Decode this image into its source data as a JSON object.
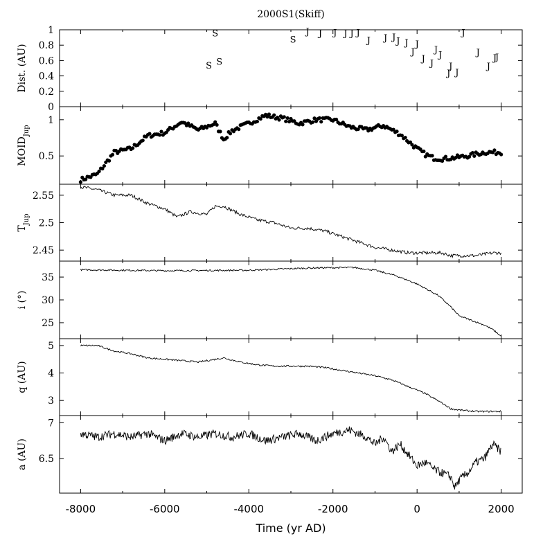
{
  "figure": {
    "title": "2000S1(Skiff)",
    "xlabel": "Time (yr AD)",
    "xlim": [
      -8500,
      2500
    ],
    "xticks": [
      -8000,
      -6000,
      -4000,
      -2000,
      0,
      2000
    ]
  },
  "chart_data": [
    {
      "type": "scatter",
      "ylabel": "Dist. (AU)",
      "ylim": [
        0,
        1
      ],
      "yticks": [
        "0",
        "0.2",
        "0.4",
        "0.6",
        "0.8",
        "1"
      ],
      "points": [
        {
          "x": -4800,
          "y": 0.96,
          "label": "S"
        },
        {
          "x": -4950,
          "y": 0.54,
          "label": "S"
        },
        {
          "x": -4700,
          "y": 0.59,
          "label": "S"
        },
        {
          "x": -2950,
          "y": 0.88,
          "label": "S"
        },
        {
          "x": -2600,
          "y": 0.98,
          "label": "J"
        },
        {
          "x": -2300,
          "y": 0.96,
          "label": "J"
        },
        {
          "x": -1950,
          "y": 0.97,
          "label": "J"
        },
        {
          "x": -1700,
          "y": 0.96,
          "label": "J"
        },
        {
          "x": -1550,
          "y": 0.96,
          "label": "J"
        },
        {
          "x": -1400,
          "y": 0.97,
          "label": "J"
        },
        {
          "x": -1150,
          "y": 0.87,
          "label": "J"
        },
        {
          "x": -750,
          "y": 0.9,
          "label": "J"
        },
        {
          "x": -550,
          "y": 0.91,
          "label": "J"
        },
        {
          "x": -450,
          "y": 0.86,
          "label": "J"
        },
        {
          "x": -250,
          "y": 0.84,
          "label": "J"
        },
        {
          "x": -100,
          "y": 0.72,
          "label": "J"
        },
        {
          "x": 0,
          "y": 0.82,
          "label": "J"
        },
        {
          "x": 150,
          "y": 0.63,
          "label": "J"
        },
        {
          "x": 350,
          "y": 0.57,
          "label": "J"
        },
        {
          "x": 450,
          "y": 0.75,
          "label": "J"
        },
        {
          "x": 550,
          "y": 0.68,
          "label": "J"
        },
        {
          "x": 750,
          "y": 0.44,
          "label": "J"
        },
        {
          "x": 800,
          "y": 0.53,
          "label": "J"
        },
        {
          "x": 950,
          "y": 0.45,
          "label": "J"
        },
        {
          "x": 1100,
          "y": 0.97,
          "label": "J"
        },
        {
          "x": 1450,
          "y": 0.71,
          "label": "J"
        },
        {
          "x": 1700,
          "y": 0.53,
          "label": "J"
        },
        {
          "x": 1850,
          "y": 0.64,
          "label": "J"
        },
        {
          "x": 1900,
          "y": 0.65,
          "label": "J"
        }
      ]
    },
    {
      "type": "scatter",
      "ylabel": "MOID",
      "ylabel_sub": "Jup",
      "ylim": [
        0.11,
        1.18
      ],
      "yticks": [
        "0.5",
        "1"
      ],
      "x": [
        -8000,
        -7600,
        -7200,
        -6800,
        -6400,
        -6000,
        -5600,
        -5200,
        -4800,
        -4600,
        -4400,
        -4000,
        -3600,
        -3200,
        -2800,
        -2400,
        -2000,
        -1600,
        -1200,
        -800,
        -400,
        0,
        200,
        400,
        600,
        800,
        1200,
        1600,
        2000
      ],
      "y": [
        0.17,
        0.25,
        0.55,
        0.6,
        0.78,
        0.82,
        0.97,
        0.86,
        0.95,
        0.73,
        0.85,
        0.95,
        1.06,
        1.02,
        0.95,
        1.0,
        1.0,
        0.9,
        0.86,
        0.92,
        0.8,
        0.6,
        0.52,
        0.47,
        0.46,
        0.47,
        0.5,
        0.55,
        0.55
      ]
    },
    {
      "type": "line",
      "ylabel": "T",
      "ylabel_sub": "Jup",
      "ylim": [
        2.43,
        2.57
      ],
      "yticks": [
        "2.45",
        "2.5",
        "2.55"
      ],
      "x": [
        -8000,
        -7600,
        -7200,
        -6800,
        -6400,
        -6000,
        -5700,
        -5400,
        -5000,
        -4800,
        -4600,
        -4200,
        -3800,
        -3400,
        -3000,
        -2600,
        -2200,
        -1800,
        -1400,
        -1000,
        -600,
        -200,
        200,
        600,
        800,
        1000,
        1400,
        1800,
        2000
      ],
      "y": [
        2.565,
        2.56,
        2.55,
        2.55,
        2.535,
        2.525,
        2.51,
        2.52,
        2.515,
        2.53,
        2.53,
        2.515,
        2.505,
        2.5,
        2.49,
        2.49,
        2.485,
        2.475,
        2.465,
        2.455,
        2.45,
        2.445,
        2.445,
        2.445,
        2.44,
        2.44,
        2.44,
        2.445,
        2.445
      ]
    },
    {
      "type": "line",
      "ylabel": "i (°)",
      "ylim": [
        21.5,
        38.5
      ],
      "yticks": [
        "25",
        "30",
        "35"
      ],
      "x": [
        -8000,
        -6000,
        -4000,
        -2500,
        -1500,
        -1000,
        -500,
        0,
        500,
        800,
        1000,
        1300,
        1600,
        1800,
        2000
      ],
      "y": [
        36.6,
        36.4,
        36.5,
        37.0,
        37.1,
        36.5,
        35.3,
        33.5,
        31.0,
        28.5,
        26.5,
        25.5,
        24.5,
        23.5,
        22.0
      ]
    },
    {
      "type": "line",
      "ylabel": "q (AU)",
      "ylim": [
        2.45,
        5.25
      ],
      "yticks": [
        "3",
        "4",
        "5"
      ],
      "x": [
        -8000,
        -7600,
        -7200,
        -6800,
        -6400,
        -6000,
        -5600,
        -5200,
        -4800,
        -4600,
        -4200,
        -3800,
        -3400,
        -3000,
        -2600,
        -2200,
        -1800,
        -1400,
        -1000,
        -600,
        -200,
        200,
        600,
        800,
        1000,
        1400,
        1800,
        2000
      ],
      "y": [
        5.0,
        5.0,
        4.8,
        4.7,
        4.55,
        4.5,
        4.45,
        4.4,
        4.5,
        4.55,
        4.4,
        4.3,
        4.25,
        4.25,
        4.25,
        4.2,
        4.1,
        4.0,
        3.9,
        3.75,
        3.5,
        3.25,
        2.9,
        2.7,
        2.65,
        2.6,
        2.6,
        2.6
      ]
    },
    {
      "type": "line",
      "ylabel": "a (AU)",
      "ylim": [
        6.02,
        7.1
      ],
      "yticks": [
        "6.5",
        "7"
      ],
      "x": [
        -8000,
        -7600,
        -7200,
        -6800,
        -6400,
        -6000,
        -5600,
        -5200,
        -4800,
        -4400,
        -4000,
        -3600,
        -3200,
        -2800,
        -2400,
        -2000,
        -1600,
        -1400,
        -1200,
        -1000,
        -800,
        -600,
        -400,
        -200,
        0,
        200,
        400,
        600,
        800,
        900,
        1000,
        1200,
        1400,
        1600,
        1800,
        2000
      ],
      "y": [
        6.85,
        6.8,
        6.85,
        6.8,
        6.85,
        6.75,
        6.85,
        6.8,
        6.85,
        6.8,
        6.85,
        6.75,
        6.8,
        6.85,
        6.75,
        6.85,
        6.9,
        6.85,
        6.8,
        6.7,
        6.8,
        6.6,
        6.7,
        6.55,
        6.4,
        6.45,
        6.35,
        6.3,
        6.25,
        6.1,
        6.2,
        6.3,
        6.45,
        6.5,
        6.7,
        6.6
      ]
    }
  ]
}
